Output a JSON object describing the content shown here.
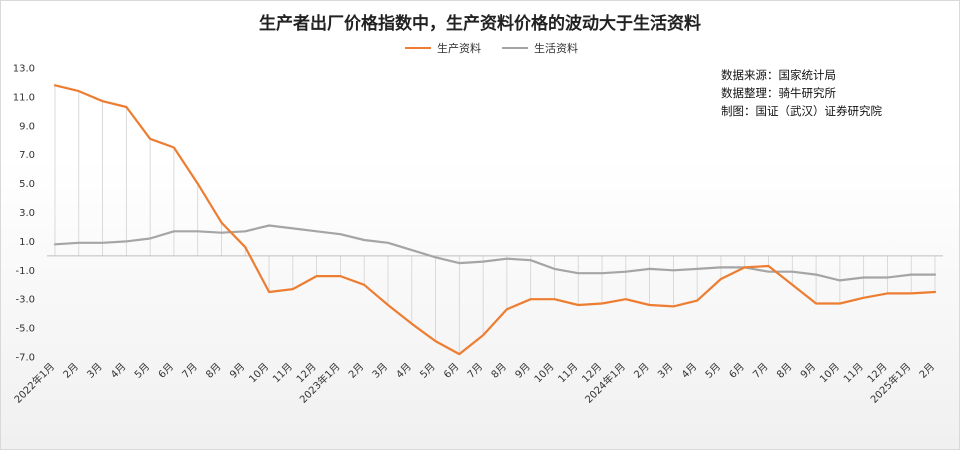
{
  "chart_data": {
    "type": "line",
    "title": "生产者出厂价格指数中，生产资料价格的波动大于生活资料",
    "xlabel": "",
    "ylabel": "",
    "ylim": [
      -7.0,
      13.0
    ],
    "yticks": [
      "13.0",
      "11.0",
      "9.0",
      "7.0",
      "5.0",
      "3.0",
      "1.0",
      "-1.0",
      "-3.0",
      "-5.0",
      "-7.0"
    ],
    "ytick_values": [
      13,
      11,
      9,
      7,
      5,
      3,
      1,
      -1,
      -3,
      -5,
      -7
    ],
    "grid": false,
    "legend_position": "top-center",
    "categories": [
      "2022年1月",
      "2月",
      "3月",
      "4月",
      "5月",
      "6月",
      "7月",
      "8月",
      "9月",
      "10月",
      "11月",
      "12月",
      "2023年1月",
      "2月",
      "3月",
      "4月",
      "5月",
      "6月",
      "7月",
      "8月",
      "9月",
      "10月",
      "11月",
      "12月",
      "2024年1月",
      "2月",
      "3月",
      "4月",
      "5月",
      "6月",
      "7月",
      "8月",
      "9月",
      "10月",
      "11月",
      "12月",
      "2025年1月",
      "2月"
    ],
    "series": [
      {
        "name": "生产资料",
        "color": "#ED7D31",
        "values": [
          11.8,
          11.4,
          10.7,
          10.3,
          8.1,
          7.5,
          5.0,
          2.3,
          0.6,
          -2.5,
          -2.3,
          -1.4,
          -1.4,
          -2.0,
          -3.4,
          -4.7,
          -5.9,
          -6.8,
          -5.5,
          -3.7,
          -3.0,
          -3.0,
          -3.4,
          -3.3,
          -3.0,
          -3.4,
          -3.5,
          -3.1,
          -1.6,
          -0.8,
          -0.7,
          -2.0,
          -3.3,
          -3.3,
          -2.9,
          -2.6,
          -2.6,
          -2.5
        ]
      },
      {
        "name": "生活资料",
        "color": "#A5A5A5",
        "values": [
          0.8,
          0.9,
          0.9,
          1.0,
          1.2,
          1.7,
          1.7,
          1.6,
          1.7,
          2.1,
          1.9,
          1.7,
          1.5,
          1.1,
          0.9,
          0.4,
          -0.1,
          -0.5,
          -0.4,
          -0.2,
          -0.3,
          -0.9,
          -1.2,
          -1.2,
          -1.1,
          -0.9,
          -1.0,
          -0.9,
          -0.8,
          -0.8,
          -1.1,
          -1.1,
          -1.3,
          -1.7,
          -1.5,
          -1.5,
          -1.3,
          -1.3
        ]
      }
    ]
  },
  "notes": {
    "line1": "数据来源：国家统计局",
    "line2": "数据整理：骑牛研究所",
    "line3": "制图：国证（武汉）证券研究院"
  }
}
